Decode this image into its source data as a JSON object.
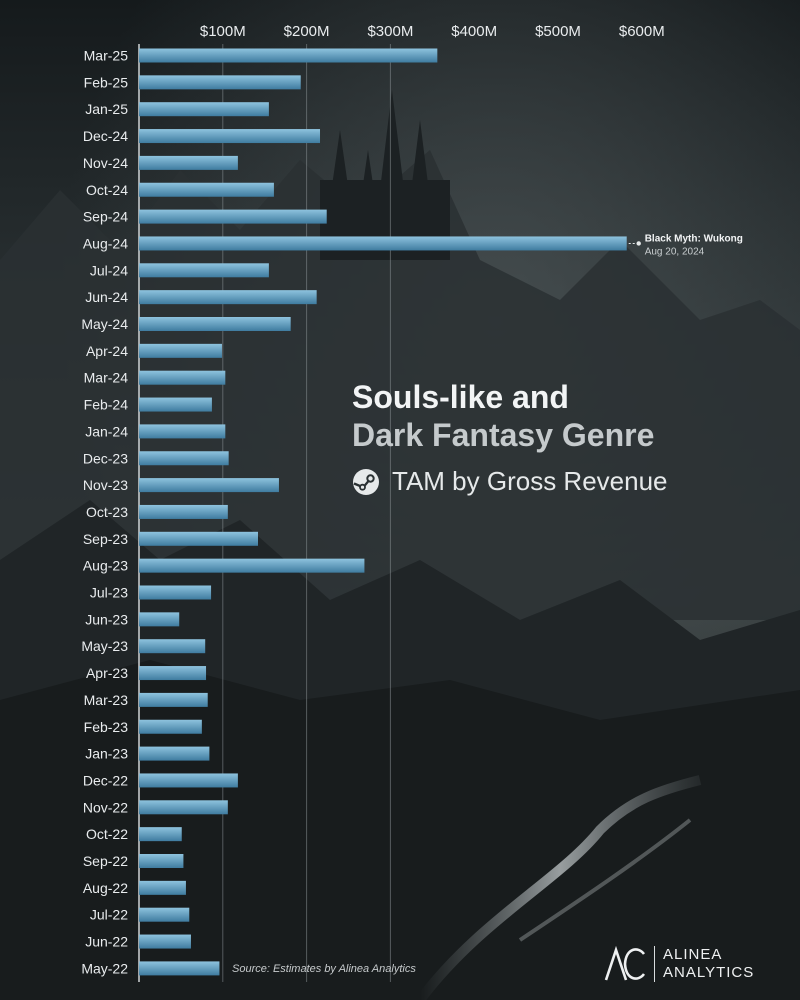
{
  "chart_data": {
    "type": "bar",
    "orientation": "horizontal",
    "title": "Souls-like and Dark Fantasy Genre",
    "title_line1": "Souls-like and",
    "title_line2": "Dark Fantasy Genre",
    "subtitle": "TAM by Gross Revenue",
    "x_tick_labels": [
      "$100M",
      "$200M",
      "$300M",
      "$400M",
      "$500M",
      "$600M"
    ],
    "x_ticks": [
      100,
      200,
      300,
      400,
      500,
      600
    ],
    "xlim": [
      0,
      650
    ],
    "grid": true,
    "categories": [
      "Mar-25",
      "Feb-25",
      "Jan-25",
      "Dec-24",
      "Nov-24",
      "Oct-24",
      "Sep-24",
      "Aug-24",
      "Jul-24",
      "Jun-24",
      "May-24",
      "Apr-24",
      "Mar-24",
      "Feb-24",
      "Jan-24",
      "Dec-23",
      "Nov-23",
      "Oct-23",
      "Sep-23",
      "Aug-23",
      "Jul-23",
      "Jun-23",
      "May-23",
      "Apr-23",
      "Mar-23",
      "Feb-23",
      "Jan-23",
      "Dec-22",
      "Nov-22",
      "Oct-22",
      "Sep-22",
      "Aug-22",
      "Jul-22",
      "Jun-22",
      "May-22"
    ],
    "values": [
      356,
      193,
      155,
      216,
      118,
      161,
      224,
      582,
      155,
      212,
      181,
      99,
      103,
      87,
      103,
      107,
      167,
      106,
      142,
      269,
      86,
      48,
      79,
      80,
      82,
      75,
      84,
      118,
      106,
      51,
      53,
      56,
      60,
      62,
      96
    ],
    "annotation": {
      "category": "Aug-24",
      "title": "Black Myth: Wukong",
      "date": "Aug 20, 2024"
    }
  },
  "source_text": "Source: Estimates by Alinea Analytics",
  "logo": {
    "mark": "AC",
    "line1": "ALINEA",
    "line2": "ANALYTICS"
  },
  "colors": {
    "bar_top": "#8ec3de",
    "bar_bottom": "#3f7ca0",
    "grid": "#8a9296",
    "text": "#e9ecee"
  },
  "icons": {
    "subtitle_icon": "steam-icon",
    "logo_icon": "alinea-logo-icon"
  }
}
